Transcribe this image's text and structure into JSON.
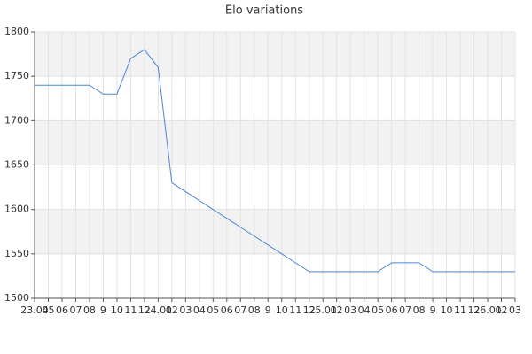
{
  "chart_data": {
    "type": "line",
    "title": "Elo variations",
    "categories": [
      "23.04",
      "05",
      "06",
      "07",
      "08",
      "9",
      "10",
      "11",
      "12",
      "24.01",
      "02",
      "03",
      "04",
      "05",
      "06",
      "07",
      "08",
      "9",
      "10",
      "11",
      "12",
      "25.01",
      "02",
      "03",
      "04",
      "05",
      "06",
      "07",
      "08",
      "9",
      "10",
      "11",
      "12",
      "26.01",
      "02",
      "03"
    ],
    "series": [
      {
        "name": "Elo",
        "color": "#4a86d8",
        "values": [
          1740,
          1740,
          1740,
          1740,
          1740,
          1730,
          1730,
          1770,
          1780,
          1760,
          1630,
          1620,
          1610,
          1600,
          1590,
          1580,
          1570,
          1560,
          1550,
          1540,
          1530,
          1530,
          1530,
          1530,
          1530,
          1530,
          1540,
          1540,
          1540,
          1530,
          1530,
          1530,
          1530,
          1530,
          1530,
          1530
        ]
      }
    ],
    "ylim": [
      1500,
      1800
    ],
    "yticks": [
      1500,
      1550,
      1600,
      1650,
      1700,
      1750,
      1800
    ],
    "grid": true
  }
}
